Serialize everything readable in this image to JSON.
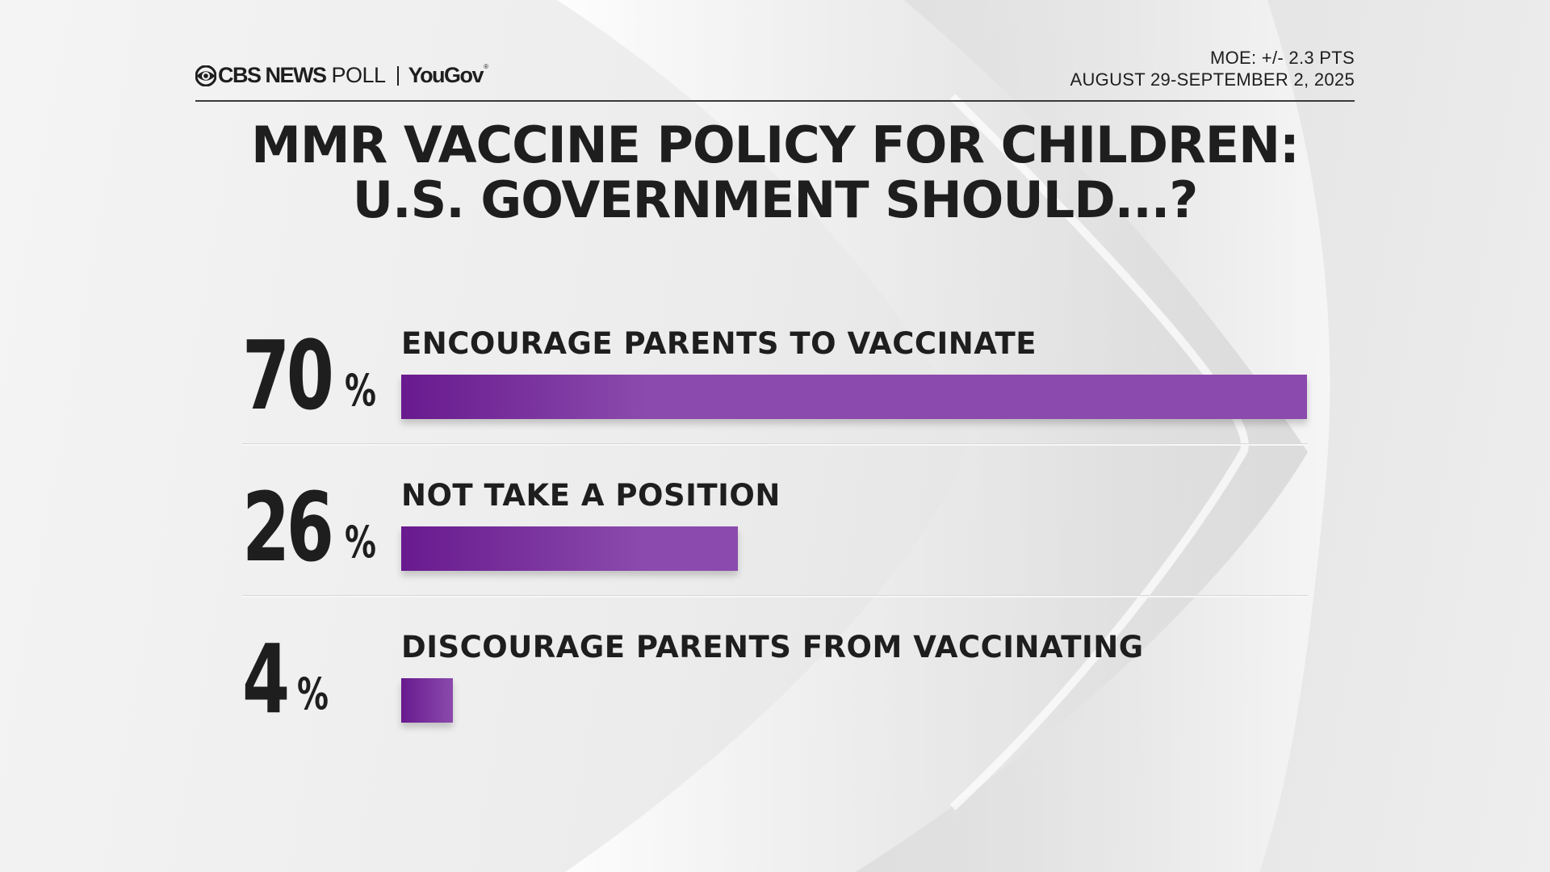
{
  "header": {
    "network": "CBS NEWS",
    "poll_word": "POLL",
    "partner": "YouGov",
    "partner_mark": "®",
    "moe": "MOE: +/- 2.3 PTS",
    "dates": "AUGUST 29-SEPTEMBER 2, 2025"
  },
  "colors": {
    "bar_start": "#681a8e",
    "bar_end": "#8b4aad",
    "text": "#1e1e1e",
    "background": "#ececec"
  },
  "chart_data": {
    "type": "bar",
    "orientation": "horizontal",
    "title": "MMR VACCINE POLICY FOR CHILDREN: U.S. GOVERNMENT SHOULD...?",
    "title_lines": [
      "MMR VACCINE POLICY FOR CHILDREN:",
      "U.S. GOVERNMENT SHOULD...?"
    ],
    "categories": [
      "ENCOURAGE PARENTS TO VACCINATE",
      "NOT TAKE A POSITION",
      "DISCOURAGE PARENTS FROM VACCINATING"
    ],
    "values": [
      70,
      26,
      4
    ],
    "value_labels": [
      "70",
      "26",
      "4"
    ],
    "value_suffix": "%",
    "xlim": [
      0,
      70
    ],
    "xlabel": "",
    "ylabel": "",
    "grid": false,
    "legend": "none"
  }
}
